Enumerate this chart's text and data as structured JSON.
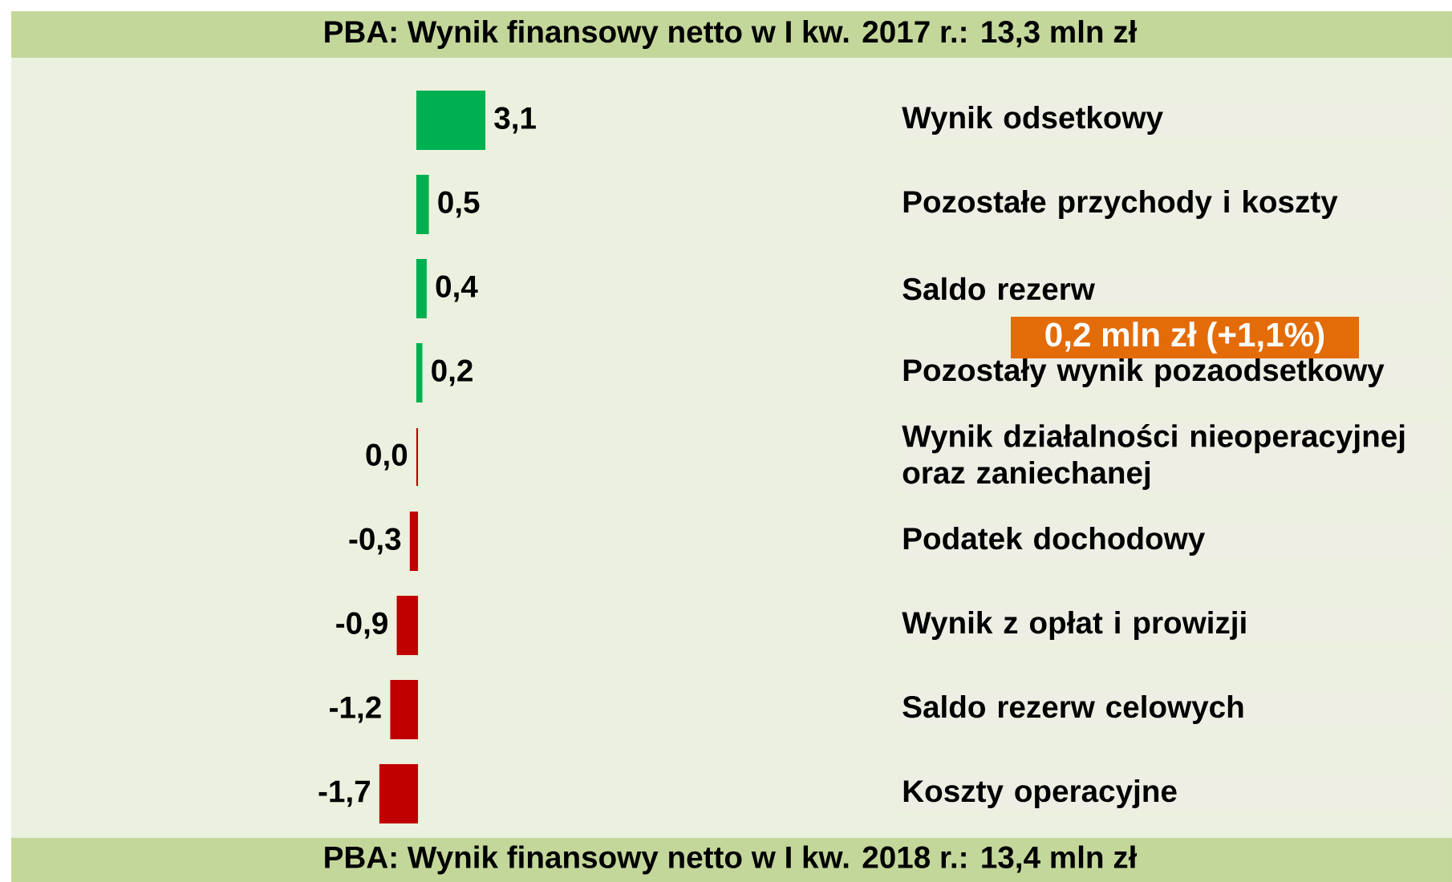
{
  "chart_data": {
    "type": "bar",
    "orientation": "horizontal",
    "title": "PBA: Wynik finansowy netto w I kw. 2017 r.: 13,3 mln zł",
    "categories": [
      "Wynik odsetkowy",
      "Pozostałe przychody i koszty",
      "Saldo rezerw",
      "Pozostały wynik pozaodsetkowy",
      "Wynik działalności nieoperacyjnej oraz zaniechanej",
      "Podatek dochodowy",
      "Wynik z opłat i prowizji",
      "Saldo rezerw celowych",
      "Koszty operacyjne"
    ],
    "values": [
      3.1,
      0.5,
      0.4,
      0.2,
      0.0,
      -0.3,
      -0.9,
      -1.2,
      -1.7
    ],
    "value_labels": [
      "3,1",
      "0,5",
      "0,4",
      "0,2",
      "0,0",
      "-0,3",
      "-0,9",
      "-1,2",
      "-1,7"
    ],
    "colors": [
      "#00b050",
      "#00b050",
      "#00b050",
      "#00b050",
      "#c00000",
      "#c00000",
      "#c00000",
      "#c00000",
      "#c00000"
    ],
    "annotations": [
      "0,2 mln zł (+1,1%)",
      "PBA: Wynik finansowy netto w I kw. 2018 r.: 13,4 mln zł"
    ]
  }
}
